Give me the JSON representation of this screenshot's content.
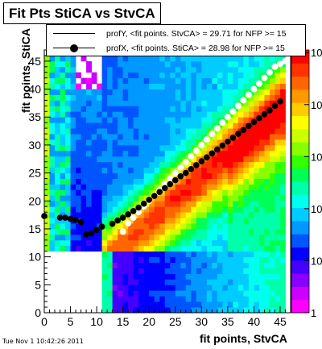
{
  "chart_data": {
    "type": "heatmap",
    "title": "Fit Pts StiCA vs StvCA",
    "xlabel": "fit points, StvCA",
    "ylabel": "fit points, StiCA",
    "xlim": [
      0,
      47
    ],
    "ylim": [
      0,
      47
    ],
    "x_ticks": [
      0,
      5,
      10,
      15,
      20,
      25,
      30,
      35,
      40,
      45
    ],
    "y_ticks": [
      0,
      5,
      10,
      15,
      20,
      25,
      30,
      35,
      40,
      45
    ],
    "z_scale": "log",
    "z_ticks": [
      {
        "label": "1",
        "base": "",
        "exp": "",
        "value": 1
      },
      {
        "label": "10",
        "base": "10",
        "exp": "",
        "value": 10
      },
      {
        "label": "10",
        "base": "10",
        "exp": "2",
        "value": 100
      },
      {
        "label": "10",
        "base": "10",
        "exp": "3",
        "value": 1000
      },
      {
        "label": "10",
        "base": "10",
        "exp": "4",
        "value": 10000
      },
      {
        "label": "10",
        "base": "10",
        "exp": "5",
        "value": 100000
      }
    ],
    "series": [
      {
        "name": "profY, <fit points. StvCA> =   29.71 for NFP >= 15",
        "marker": "open-circle",
        "x": [
          15,
          16,
          17,
          18,
          19,
          20,
          21,
          22,
          23,
          24,
          25,
          26,
          27,
          28,
          29,
          30,
          31,
          32,
          33,
          34,
          35,
          36,
          37,
          38,
          39,
          40,
          41,
          42,
          43,
          44,
          45,
          46
        ],
        "y": [
          14.5,
          16,
          17,
          18,
          19,
          20,
          21,
          22,
          23,
          24,
          25,
          26,
          27,
          28,
          29,
          30,
          31,
          32,
          33,
          34,
          35,
          36,
          37,
          38,
          39,
          40,
          41,
          42,
          43,
          44,
          44.5,
          45
        ]
      },
      {
        "name": "profX, <fit points. StiCA> =   28.98 for NFP >= 15",
        "marker": "filled-circle",
        "x": [
          0,
          3,
          4,
          5,
          6,
          7,
          8,
          9,
          10,
          11,
          13,
          14,
          15,
          16,
          17,
          18,
          19,
          20,
          21,
          22,
          23,
          24,
          25,
          26,
          27,
          28,
          29,
          30,
          31,
          32,
          33,
          34,
          35,
          36,
          37,
          38,
          39,
          40,
          41,
          42,
          43,
          44,
          45
        ],
        "y": [
          17.3,
          17,
          17,
          16.8,
          16.6,
          16.2,
          14,
          14.2,
          14.8,
          15.4,
          15.9,
          16.5,
          17,
          17.6,
          18.2,
          18.8,
          19.5,
          20.2,
          20.9,
          21.6,
          22.3,
          23,
          23.7,
          24.4,
          25,
          25.7,
          26.4,
          27.1,
          27.8,
          28.5,
          29.2,
          29.9,
          30.6,
          31.3,
          32,
          32.7,
          33.4,
          34.1,
          34.8,
          35.5,
          36.2,
          37,
          37.8
        ]
      }
    ],
    "palette": [
      "#ff00ff",
      "#cc00ff",
      "#8800ff",
      "#4400ff",
      "#0000ff",
      "#0055ff",
      "#0099ff",
      "#00ccff",
      "#00ffee",
      "#00ffaa",
      "#00ff55",
      "#33ff00",
      "#88ff00",
      "#ccff00",
      "#ffff00",
      "#ffcc00",
      "#ff9900",
      "#ff6600",
      "#ff3300",
      "#ff0000"
    ],
    "legend_placement": "top"
  },
  "footer": "Tue Nov  1 10:42:26 2011"
}
